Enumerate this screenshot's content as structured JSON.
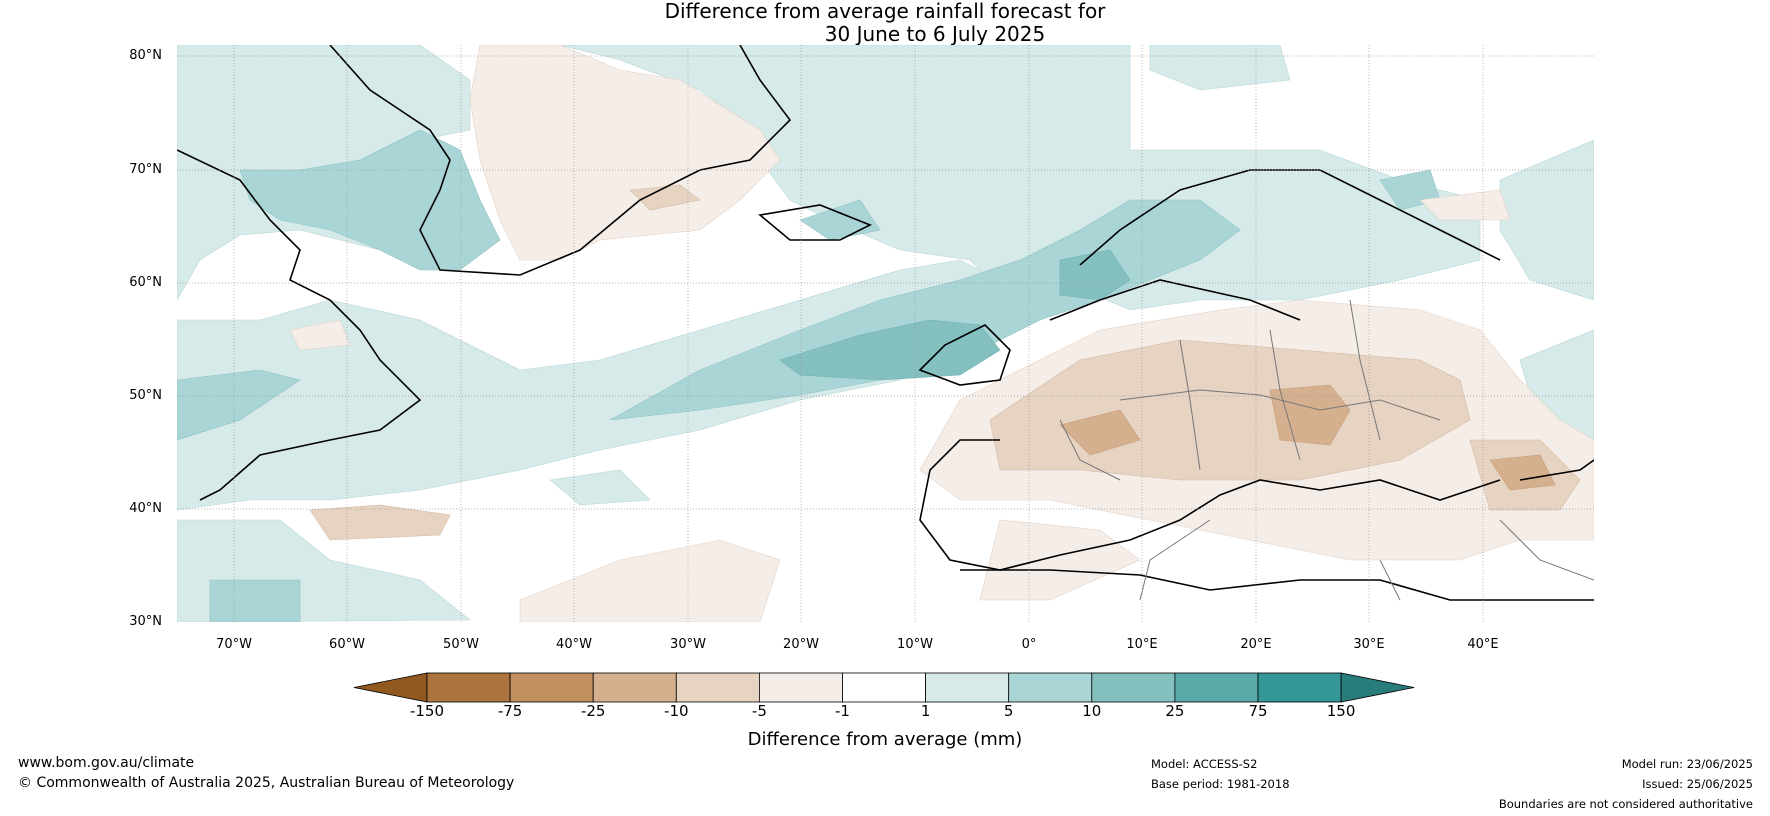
{
  "title_line1": "Difference from average rainfall forecast for",
  "title_line2": "30 June to 6 July 2025",
  "map": {
    "lat_ticks": [
      "80°N",
      "70°N",
      "60°N",
      "50°N",
      "40°N",
      "30°N"
    ],
    "lon_ticks": [
      "70°W",
      "60°W",
      "50°W",
      "40°W",
      "30°W",
      "20°W",
      "10°W",
      "0°",
      "10°E",
      "20°E",
      "30°E",
      "40°E"
    ]
  },
  "colorbar": {
    "label": "Difference from average (mm)",
    "ticks": [
      "-150",
      "-75",
      "-25",
      "-10",
      "-5",
      "-1",
      "1",
      "5",
      "10",
      "25",
      "75",
      "150"
    ],
    "colors": [
      "#91581f",
      "#ab733d",
      "#c0915f",
      "#d5b08f",
      "#e7d3c2",
      "#f5ede7",
      "#ffffff",
      "#d7eaea",
      "#aad5d6",
      "#84c0c0",
      "#5aaaaa",
      "#349696",
      "#287c7b"
    ]
  },
  "footer": {
    "url": "www.bom.gov.au/climate",
    "copyright": "© Commonwealth of Australia 2025, Australian Bureau of Meteorology",
    "model": "Model: ACCESS-S2",
    "base_period": "Base period: 1981-2018",
    "model_run": "Model run: 23/06/2025",
    "issued": "Issued: 25/06/2025",
    "disclaimer": "Boundaries are not considered authoritative"
  }
}
